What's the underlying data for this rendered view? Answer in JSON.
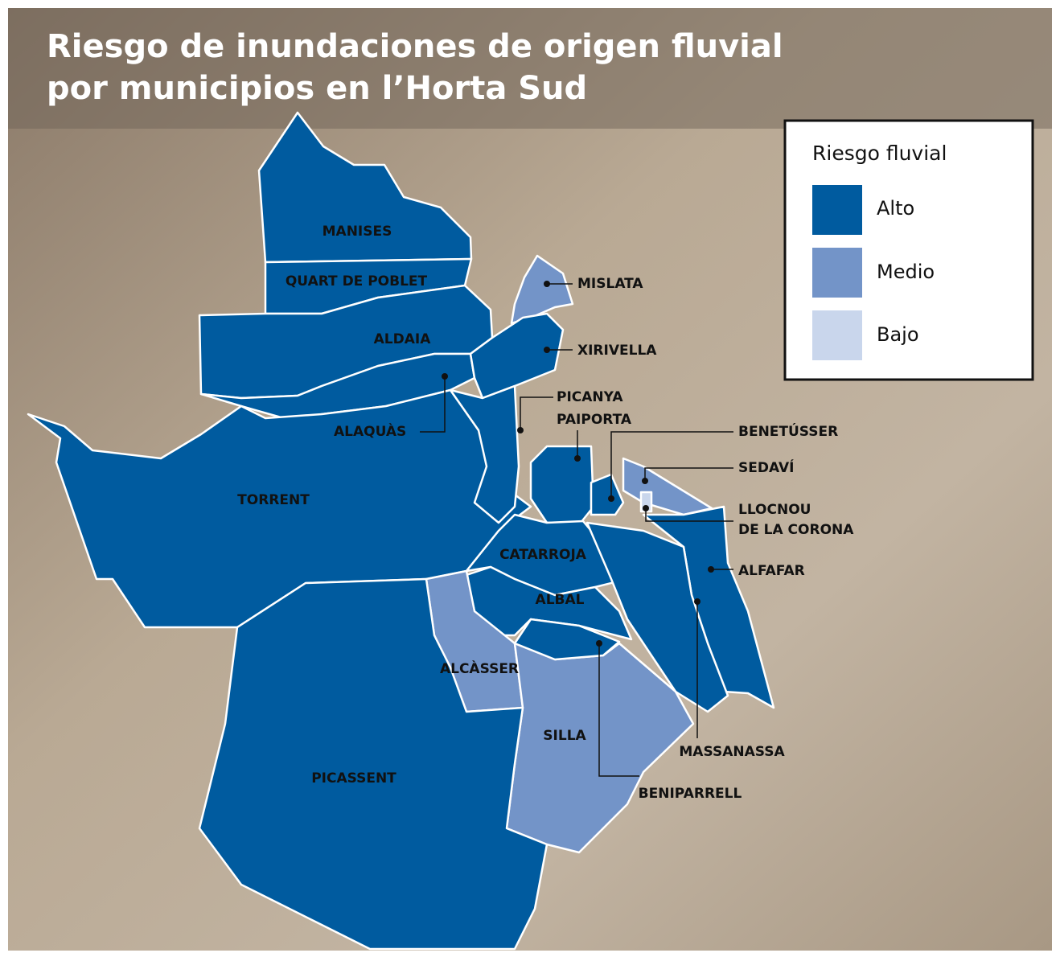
{
  "title": [
    "Riesgo de inundaciones de origen fluvial",
    "por municipios en l’Horta Sud"
  ],
  "legend": {
    "title": "Riesgo fluvial",
    "levels": [
      {
        "label": "Alto",
        "color": "#005b9f"
      },
      {
        "label": "Medio",
        "color": "#7394c8"
      },
      {
        "label": "Bajo",
        "color": "#c9d6ec"
      }
    ]
  },
  "municipalities": [
    {
      "name": "MANISES",
      "risk": "Alto"
    },
    {
      "name": "QUART DE POBLET",
      "risk": "Alto"
    },
    {
      "name": "ALDAIA",
      "risk": "Alto"
    },
    {
      "name": "ALAQUÀS",
      "risk": "Alto"
    },
    {
      "name": "MISLATA",
      "risk": "Medio"
    },
    {
      "name": "XIRIVELLA",
      "risk": "Alto"
    },
    {
      "name": "TORRENT",
      "risk": "Alto"
    },
    {
      "name": "PICANYA",
      "risk": "Alto"
    },
    {
      "name": "PAIPORTA",
      "risk": "Alto"
    },
    {
      "name": "BENETÚSSER",
      "risk": "Alto"
    },
    {
      "name": "SEDAVÍ",
      "risk": "Medio"
    },
    {
      "name": [
        "LLOCNOU",
        "DE LA CORONA"
      ],
      "risk": "Bajo"
    },
    {
      "name": "ALFAFAR",
      "risk": "Alto"
    },
    {
      "name": "CATARROJA",
      "risk": "Alto"
    },
    {
      "name": "ALBAL",
      "risk": "Alto"
    },
    {
      "name": "MASSANASSA",
      "risk": "Alto"
    },
    {
      "name": "ALCÀSSER",
      "risk": "Medio"
    },
    {
      "name": "SILLA",
      "risk": "Medio"
    },
    {
      "name": "BENIPARRELL",
      "risk": "Alto"
    },
    {
      "name": "PICASSENT",
      "risk": "Alto"
    }
  ]
}
